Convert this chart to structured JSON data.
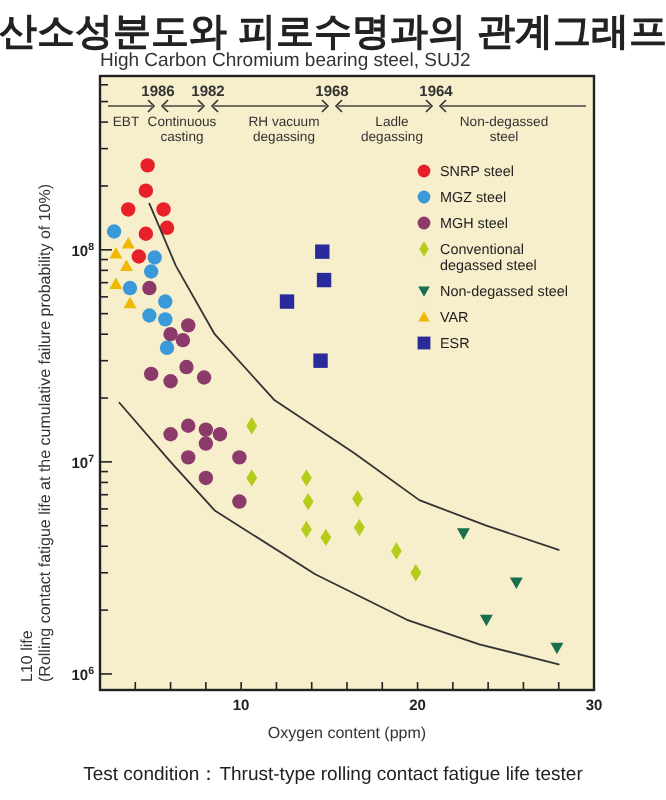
{
  "chart_data": {
    "type": "scatter",
    "title": "산소성분도와 피로수명과의 관계그래프",
    "subtitle": "High Carbon Chromium bearing steel, SUJ2",
    "xlabel": "Oxygen content (ppm)",
    "ylabel": "L10 life\n(Rolling contact fatigue life at the cumulative failure probability of 10%)",
    "log": "y",
    "xlim": [
      2,
      30
    ],
    "ylim": [
      840000,
      660000000
    ],
    "xticks": [
      {
        "value": 4,
        "label": null
      },
      {
        "value": 6,
        "label": null
      },
      {
        "value": 8,
        "label": null
      },
      10,
      {
        "value": 12,
        "label": null
      },
      {
        "value": 14,
        "label": null
      },
      {
        "value": 16,
        "label": null
      },
      {
        "value": 18,
        "label": null
      },
      20,
      {
        "value": 22,
        "label": null
      },
      {
        "value": 24,
        "label": null
      },
      {
        "value": 26,
        "label": null
      },
      {
        "value": 28,
        "label": null
      },
      30
    ],
    "yticks": [
      {
        "value": 1000000,
        "label": "10$^{6}$"
      },
      {
        "value": 2000000,
        "label": null
      },
      {
        "value": 3000000,
        "label": null
      },
      {
        "value": 4000000,
        "label": null
      },
      {
        "value": 5000000,
        "label": null
      },
      {
        "value": 6000000,
        "label": null
      },
      {
        "value": 7000000,
        "label": null
      },
      {
        "value": 8000000,
        "label": null
      },
      {
        "value": 9000000,
        "label": null
      },
      {
        "value": 10000000,
        "label": "10$^{7}$"
      },
      {
        "value": 20000000,
        "label": null
      },
      {
        "value": 30000000,
        "label": null
      },
      {
        "value": 40000000,
        "label": null
      },
      {
        "value": 50000000,
        "label": null
      },
      {
        "value": 60000000,
        "label": null
      },
      {
        "value": 70000000,
        "label": null
      },
      {
        "value": 80000000,
        "label": null
      },
      {
        "value": 90000000,
        "label": null
      },
      {
        "value": 100000000,
        "label": "10$^{8}$"
      },
      {
        "value": 200000000,
        "label": null
      },
      {
        "value": 300000000,
        "label": null
      },
      {
        "value": 400000000,
        "label": null
      },
      {
        "value": 500000000,
        "label": null
      },
      {
        "value": 600000000,
        "label": null
      }
    ],
    "legend": "top right",
    "grid": false,
    "series": [
      {
        "name": "SNRP steel",
        "color": "#e8202a",
        "marker": "circle",
        "x": [
          4.7,
          4.6,
          3.6,
          5.6,
          5.8,
          4.6,
          4.2
        ],
        "values": [
          250000000,
          190000000,
          155000000,
          155000000,
          127000000,
          119000000,
          93000000
        ]
      },
      {
        "name": "MGZ steel",
        "color": "#3a9ad9",
        "marker": "circle",
        "x": [
          2.8,
          5.1,
          4.9,
          3.7,
          5.7,
          4.8,
          5.7,
          5.8
        ],
        "values": [
          122000000,
          92000000,
          79000000,
          66000000,
          57000000,
          49000000,
          47000000,
          34500000
        ]
      },
      {
        "name": "MGH steel",
        "color": "#8b3a6a",
        "marker": "circle",
        "x": [
          4.8,
          6.0,
          7.0,
          6.7,
          4.9,
          6.9,
          7.9,
          6.0,
          6.0,
          7.0,
          8.0,
          8.8,
          8.0,
          7.0,
          9.9,
          8.0,
          9.9
        ],
        "values": [
          66000000,
          40000000,
          44000000,
          37500000,
          26000000,
          28000000,
          25000000,
          24000000,
          13500000,
          14800000,
          14200000,
          13500000,
          12200000,
          10500000,
          10500000,
          8400000,
          6500000
        ]
      },
      {
        "name": "Conventional degassed steel",
        "color": "#b5cc1a",
        "marker": "diamond",
        "x": [
          10.6,
          10.6,
          13.7,
          13.8,
          13.7,
          14.8,
          16.6,
          16.7,
          18.8,
          19.9
        ],
        "values": [
          14800000,
          8400000,
          8400000,
          6500000,
          4800000,
          4400000,
          6700000,
          4900000,
          3800000,
          3000000
        ]
      },
      {
        "name": "Non-degassed steel",
        "color": "#1a6e50",
        "marker": "triangle-down",
        "x": [
          22.6,
          25.6,
          23.9,
          27.9
        ],
        "values": [
          4600000,
          2700000,
          1800000,
          1330000
        ]
      },
      {
        "name": "VAR",
        "color": "#f0b800",
        "marker": "triangle",
        "x": [
          3.6,
          2.9,
          3.5,
          2.9,
          3.7
        ],
        "values": [
          107000000,
          96000000,
          84000000,
          69000000,
          56000000
        ]
      },
      {
        "name": "ESR",
        "color": "#2a2a9a",
        "marker": "square",
        "x": [
          14.6,
          14.7,
          12.6,
          14.5
        ],
        "values": [
          98000000,
          72000000,
          57000000,
          30000000
        ]
      },
      {
        "type": "line",
        "color": "#333333",
        "x": [
          4.8,
          6.3,
          8.5,
          11.9,
          16.4,
          20.1,
          23.9,
          28.0
        ],
        "values": [
          165000000,
          84000000,
          40000000,
          19500000,
          11000000,
          6600000,
          5000000,
          3850000
        ]
      },
      {
        "type": "line",
        "color": "#333333",
        "x": [
          3.1,
          6.0,
          8.5,
          14.2,
          19.4,
          23.5,
          28.0
        ],
        "values": [
          19000000,
          10000000,
          5900000,
          2950000,
          1800000,
          1380000,
          1110000
        ]
      }
    ],
    "annotations": [
      "1986",
      "1982",
      "1968",
      "1964",
      "EBT",
      "Continuous\ncasting",
      "RH vacuum\ndegassing",
      "Ladle\ndegassing",
      "Non-degassed\nsteel",
      "Test condition：Thrust-type rolling contact fatigue life tester"
    ]
  }
}
